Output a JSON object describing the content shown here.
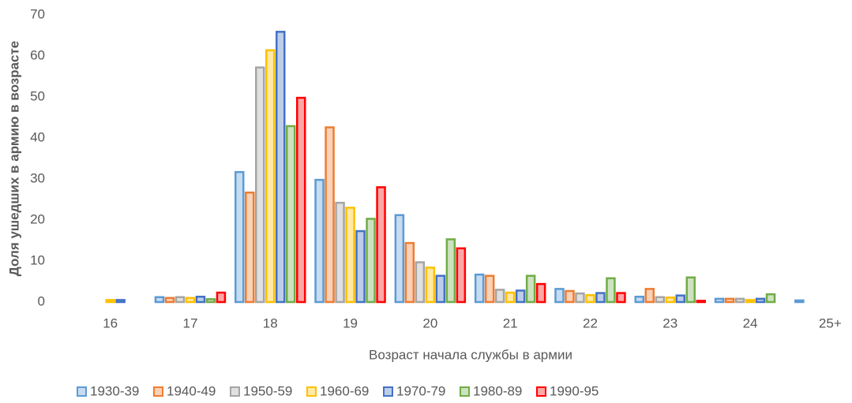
{
  "chart_data": {
    "type": "bar",
    "y_label": "Доля ушедших в армию в возрасте",
    "x_label": "Возраст начала службы в армии",
    "categories": [
      "16",
      "17",
      "18",
      "19",
      "20",
      "21",
      "22",
      "23",
      "24",
      "25+"
    ],
    "series": [
      {
        "name": "1930-39",
        "color": "#5b9bd5",
        "values": [
          0,
          1.2,
          31.7,
          29.8,
          21.2,
          6.7,
          3.2,
          1.3,
          0.8,
          0.4
        ]
      },
      {
        "name": "1940-49",
        "color": "#ed7d31",
        "values": [
          0,
          1,
          26.7,
          42.6,
          14.4,
          6.4,
          2.7,
          3.2,
          0.8,
          0
        ]
      },
      {
        "name": "1950-59",
        "color": "#a5a5a5",
        "values": [
          0,
          1.2,
          57.2,
          24.2,
          9.7,
          3,
          2.1,
          1.2,
          0.8,
          0
        ]
      },
      {
        "name": "1960-69",
        "color": "#ffc000",
        "values": [
          0.5,
          1,
          61.4,
          23,
          8.4,
          2.3,
          1.7,
          1.1,
          0.5,
          0
        ]
      },
      {
        "name": "1970-79",
        "color": "#4472c4",
        "values": [
          0.5,
          1.3,
          65.9,
          17.3,
          6.4,
          2.8,
          2.2,
          1.6,
          0.8,
          0
        ]
      },
      {
        "name": "1980-89",
        "color": "#70ad47",
        "values": [
          0,
          0.7,
          42.9,
          20.3,
          15.3,
          6.4,
          5.8,
          6,
          1.9,
          0
        ]
      },
      {
        "name": "1990-95",
        "color": "#ff0000",
        "values": [
          0,
          2.3,
          49.8,
          28,
          13.1,
          4.4,
          2.2,
          0.3,
          0,
          0
        ]
      }
    ],
    "ylim": [
      0,
      70
    ],
    "yticks": [
      0,
      10,
      20,
      30,
      40,
      50,
      60,
      70
    ],
    "legend": "bottom"
  }
}
